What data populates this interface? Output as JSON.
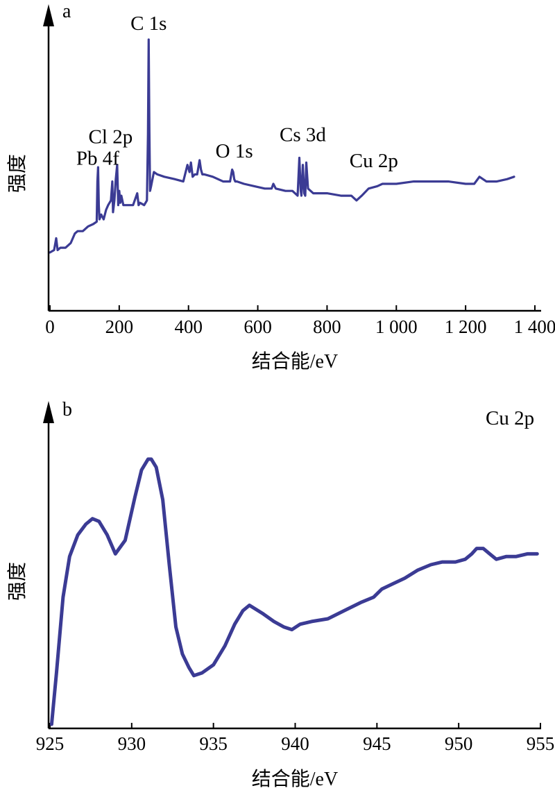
{
  "colors": {
    "series": "#3b3b94",
    "axes": "#000000"
  },
  "chart_data": [
    {
      "type": "line",
      "panel_label": "a",
      "xlabel": "结合能/eV",
      "ylabel": "强度",
      "xlim": [
        0,
        1400
      ],
      "ylim": [
        0,
        100
      ],
      "y_ticks_shown": false,
      "x_ticks": [
        0,
        200,
        400,
        600,
        800,
        1000,
        1200,
        1400
      ],
      "x_tick_labels": [
        "0",
        "200",
        "400",
        "600",
        "800",
        "1 000",
        "1 200",
        "1 400"
      ],
      "annotations": [
        {
          "text": "C 1s",
          "x": 285,
          "y": 100
        },
        {
          "text": "Cl 2p",
          "x": 175,
          "y": 52
        },
        {
          "text": "Pb 4f",
          "x": 138,
          "y": 43
        },
        {
          "text": "O 1s",
          "x": 532,
          "y": 46
        },
        {
          "text": "Cs 3d",
          "x": 730,
          "y": 53
        },
        {
          "text": "Cu 2p",
          "x": 935,
          "y": 42
        }
      ],
      "series": [
        {
          "x": [
            0,
            12,
            18,
            22,
            30,
            45,
            60,
            72,
            80,
            95,
            110,
            125,
            135,
            137,
            139,
            141,
            143,
            148,
            155,
            162,
            168,
            176,
            180,
            182,
            186,
            190,
            194,
            197,
            200,
            203,
            206,
            212,
            222,
            240,
            252,
            256,
            260,
            272,
            280,
            283,
            285,
            287,
            289,
            292,
            300,
            310,
            330,
            360,
            385,
            397,
            403,
            407,
            412,
            418,
            425,
            432,
            436,
            440,
            446,
            470,
            500,
            520,
            526,
            529,
            532,
            535,
            540,
            560,
            590,
            620,
            640,
            645,
            652,
            680,
            700,
            715,
            720,
            724,
            726,
            730,
            734,
            737,
            740,
            745,
            760,
            800,
            840,
            870,
            885,
            900,
            920,
            945,
            960,
            1000,
            1050,
            1100,
            1150,
            1200,
            1225,
            1240,
            1260,
            1290,
            1320,
            1340
          ],
          "values": [
            10,
            11,
            16,
            11,
            12,
            12,
            14,
            18,
            19,
            19,
            21,
            22,
            23,
            40,
            46,
            30,
            24,
            26,
            24,
            28,
            30,
            32,
            40,
            27,
            32,
            41,
            47,
            30,
            36,
            31,
            34,
            30,
            30,
            30,
            35,
            30,
            31,
            30,
            32,
            60,
            100,
            62,
            36,
            38,
            44,
            43,
            42,
            41,
            40,
            47,
            44,
            48,
            42,
            43,
            43,
            49,
            45,
            43,
            43,
            42,
            40,
            40,
            45,
            44,
            41,
            40,
            40,
            39,
            38,
            37,
            37,
            39,
            37,
            36,
            36,
            34,
            50,
            36,
            34,
            47,
            35,
            34,
            48,
            37,
            35,
            35,
            34,
            34,
            32,
            34,
            37,
            38,
            39,
            39,
            40,
            40,
            40,
            39,
            39,
            42,
            40,
            40,
            41,
            42
          ]
        }
      ]
    },
    {
      "type": "line",
      "panel_label": "b",
      "title": "Cu 2p",
      "xlabel": "结合能/eV",
      "ylabel": "强度",
      "xlim": [
        925,
        955
      ],
      "ylim": [
        0,
        100
      ],
      "y_ticks_shown": false,
      "x_ticks": [
        925,
        930,
        935,
        940,
        945,
        950,
        955
      ],
      "x_tick_labels": [
        "925",
        "930",
        "935",
        "940",
        "945",
        "950",
        "955"
      ],
      "series": [
        {
          "x": [
            925.1,
            925.4,
            925.8,
            926.2,
            926.7,
            927.2,
            927.6,
            928.0,
            928.5,
            929.0,
            929.6,
            930.2,
            930.6,
            931.0,
            931.2,
            931.5,
            931.9,
            932.3,
            932.7,
            933.1,
            933.5,
            933.8,
            934.3,
            935.0,
            935.7,
            936.3,
            936.8,
            937.2,
            938.0,
            938.7,
            939.3,
            939.8,
            940.3,
            941.0,
            942.0,
            943.0,
            944.0,
            944.8,
            945.3,
            946.0,
            946.7,
            947.5,
            948.3,
            949.0,
            949.8,
            950.4,
            950.8,
            951.1,
            951.5,
            951.9,
            952.3,
            952.9,
            953.5,
            954.2,
            954.8
          ],
          "values": [
            1,
            20,
            48,
            63,
            71,
            75,
            77,
            76,
            71,
            64,
            69,
            85,
            95,
            99,
            99,
            96,
            84,
            60,
            37,
            27,
            22,
            19,
            20,
            23,
            30,
            38,
            43,
            45,
            42,
            39,
            37,
            36,
            38,
            39,
            40,
            43,
            46,
            48,
            51,
            53,
            55,
            58,
            60,
            61,
            61,
            62,
            64,
            66,
            66,
            64,
            62,
            63,
            63,
            64,
            64
          ]
        }
      ]
    }
  ]
}
